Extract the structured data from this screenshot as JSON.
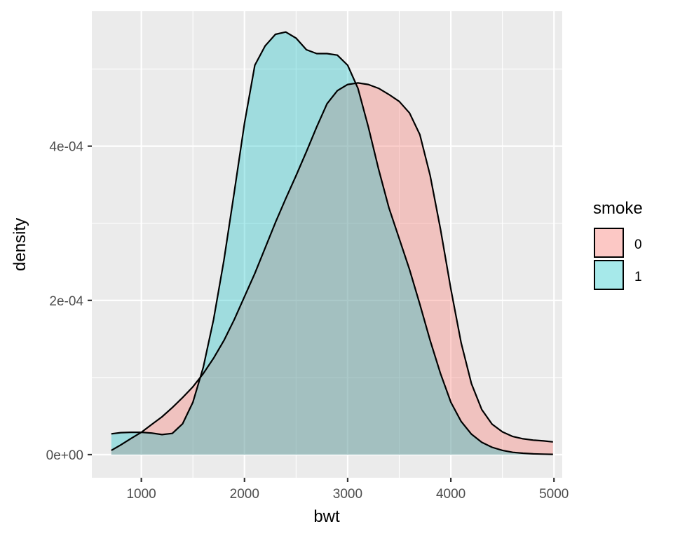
{
  "chart_data": {
    "type": "area",
    "subtype": "density",
    "xlabel": "bwt",
    "ylabel": "density",
    "xlim": [
      520,
      5080
    ],
    "ylim": [
      -3e-05,
      0.000575
    ],
    "x_ticks": [
      1000,
      2000,
      3000,
      4000,
      5000
    ],
    "x_tick_labels": [
      "1000",
      "2000",
      "3000",
      "4000",
      "5000"
    ],
    "y_ticks": [
      0,
      0.0002,
      0.0004
    ],
    "y_tick_labels": [
      "0e+00",
      "2e-04",
      "4e-04"
    ],
    "grid": true,
    "legend": {
      "title": "smoke",
      "position": "right",
      "entries": [
        "0",
        "1"
      ]
    },
    "series": [
      {
        "name": "0",
        "color": "#F8766D",
        "x": [
          709,
          800,
          900,
          1000,
          1100,
          1200,
          1300,
          1400,
          1500,
          1600,
          1700,
          1800,
          1900,
          2000,
          2100,
          2200,
          2300,
          2400,
          2500,
          2600,
          2700,
          2800,
          2900,
          3000,
          3100,
          3200,
          3300,
          3400,
          3500,
          3600,
          3700,
          3800,
          3900,
          4000,
          4100,
          4200,
          4300,
          4400,
          4500,
          4600,
          4700,
          4800,
          4900,
          4990
        ],
        "y": [
          5.5e-06,
          1.25e-05,
          2.1e-05,
          2.9e-05,
          3.9e-05,
          4.9e-05,
          6.1e-05,
          7.4e-05,
          8.8e-05,
          0.000105,
          0.000125,
          0.000148,
          0.000175,
          0.000205,
          0.000235,
          0.000268,
          0.000301,
          0.000332,
          0.000362,
          0.000393,
          0.000425,
          0.000455,
          0.000472,
          0.00048,
          0.000482,
          0.00048,
          0.000475,
          0.000467,
          0.000458,
          0.000443,
          0.000415,
          0.000362,
          0.000292,
          0.000215,
          0.000145,
          9.2e-05,
          5.85e-05,
          3.95e-05,
          2.95e-05,
          2.35e-05,
          2.05e-05,
          1.88e-05,
          1.78e-05,
          1.65e-05
        ]
      },
      {
        "name": "1",
        "color": "#00BFC4",
        "x": [
          709,
          800,
          900,
          1000,
          1100,
          1200,
          1300,
          1400,
          1500,
          1600,
          1700,
          1800,
          1900,
          2000,
          2100,
          2200,
          2300,
          2400,
          2500,
          2600,
          2700,
          2800,
          2900,
          3000,
          3100,
          3200,
          3300,
          3400,
          3500,
          3600,
          3700,
          3800,
          3900,
          4000,
          4100,
          4200,
          4300,
          4400,
          4500,
          4600,
          4700,
          4800,
          4900,
          4990
        ],
        "y": [
          2.7e-05,
          2.85e-05,
          2.9e-05,
          2.9e-05,
          2.8e-05,
          2.6e-05,
          2.75e-05,
          4e-05,
          6.8e-05,
          0.000113,
          0.000175,
          0.000252,
          0.00034,
          0.00043,
          0.000505,
          0.00053,
          0.000545,
          0.000548,
          0.00054,
          0.000525,
          0.00052,
          0.00052,
          0.000518,
          0.000505,
          0.000475,
          0.000425,
          0.00037,
          0.00032,
          0.00028,
          0.00024,
          0.000195,
          0.000148,
          0.000105,
          6.8e-05,
          4.3e-05,
          2.65e-05,
          1.6e-05,
          9.5e-06,
          5.5e-06,
          3e-06,
          1.8e-06,
          1e-06,
          6e-07,
          3e-07
        ]
      }
    ]
  }
}
